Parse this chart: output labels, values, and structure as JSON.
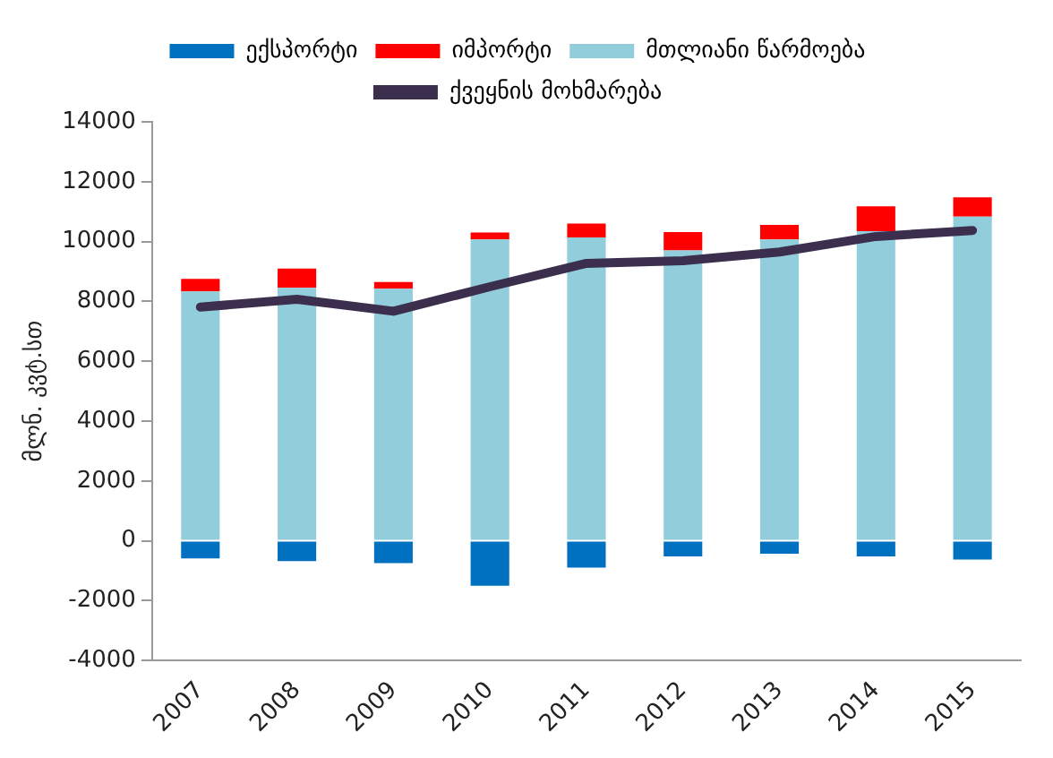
{
  "chart_data": {
    "type": "bar",
    "ylabel": "მლნ. კვტ.სთ",
    "categories": [
      "2007",
      "2008",
      "2009",
      "2010",
      "2011",
      "2012",
      "2013",
      "2014",
      "2015"
    ],
    "series": [
      {
        "name": "ექსპორტი",
        "color": "#0070c0",
        "values": [
          -590,
          -680,
          -750,
          -1500,
          -900,
          -520,
          -430,
          -520,
          -630
        ]
      },
      {
        "name": "იმპორტი",
        "color": "#ff0000",
        "values": [
          420,
          650,
          230,
          230,
          460,
          620,
          490,
          830,
          650
        ]
      },
      {
        "name": "მთლიანი წარმოება",
        "color": "#92cddc",
        "values": [
          8330,
          8450,
          8420,
          10070,
          10140,
          9700,
          10070,
          10350,
          10830
        ]
      },
      {
        "name": "ქვეყნის მოხმარება",
        "type": "line",
        "color": "#3b2f4d",
        "values": [
          7810,
          8070,
          7670,
          8490,
          9270,
          9360,
          9650,
          10170,
          10370
        ]
      }
    ],
    "stacked": true,
    "ylim": [
      -4000,
      14000
    ],
    "yticks": [
      -4000,
      -2000,
      0,
      2000,
      4000,
      6000,
      8000,
      10000,
      12000,
      14000
    ],
    "grid": false,
    "legend": "top",
    "marker": "none",
    "line_style": "solid"
  }
}
